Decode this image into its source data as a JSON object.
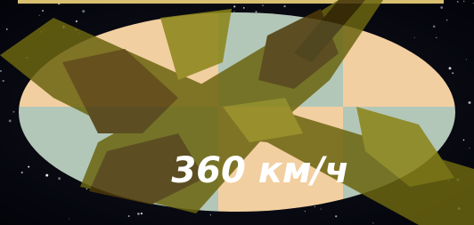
{
  "speed_label": "360 км/ч"
}
